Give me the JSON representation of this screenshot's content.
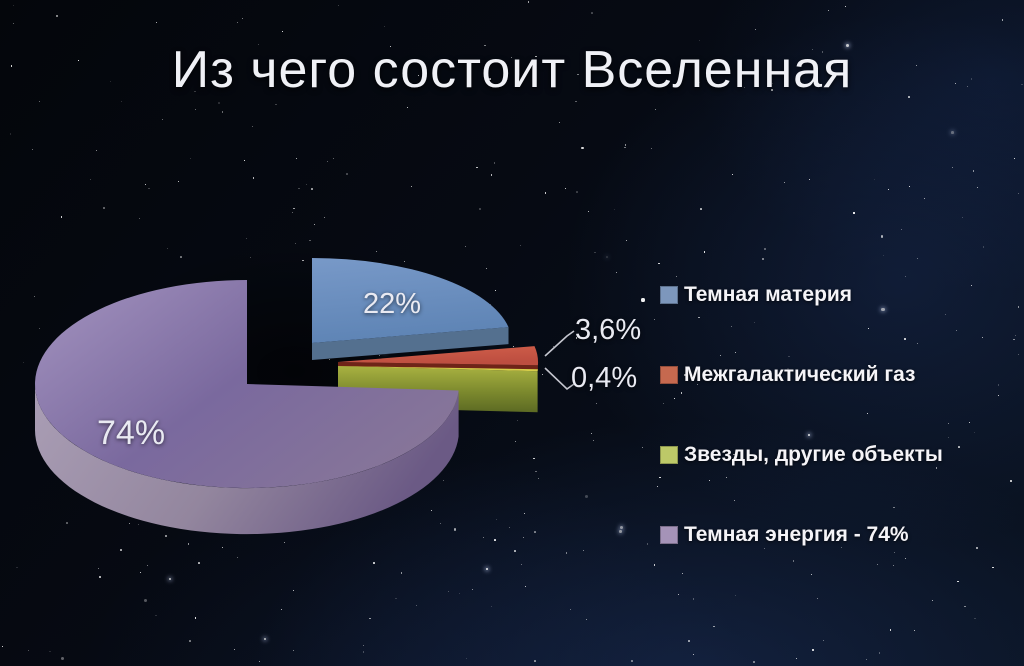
{
  "title": "Из чего состоит Вселенная",
  "chart_data": {
    "type": "pie",
    "style": "3d-exploded",
    "title": "Из чего состоит Вселенная",
    "unit": "%",
    "legend_position": "right",
    "total": 100,
    "series": [
      {
        "name": "Темная материя",
        "value": 22,
        "display": "22%",
        "color": "#7d97bc",
        "legend_label": "Темная материя"
      },
      {
        "name": "Межгалактический газ",
        "value": 3.6,
        "display": "3,6%",
        "color": "#c6694f",
        "legend_label": "Межгалактический газ"
      },
      {
        "name": "Звезды, другие объекты",
        "value": 0.4,
        "display": "0,4%",
        "color": "#bdc968",
        "legend_label": "Звезды, другие объекты"
      },
      {
        "name": "Темная энергия",
        "value": 74,
        "display": "74%",
        "color": "#a593b8",
        "legend_label": "Темная энергия - 74%"
      }
    ]
  }
}
